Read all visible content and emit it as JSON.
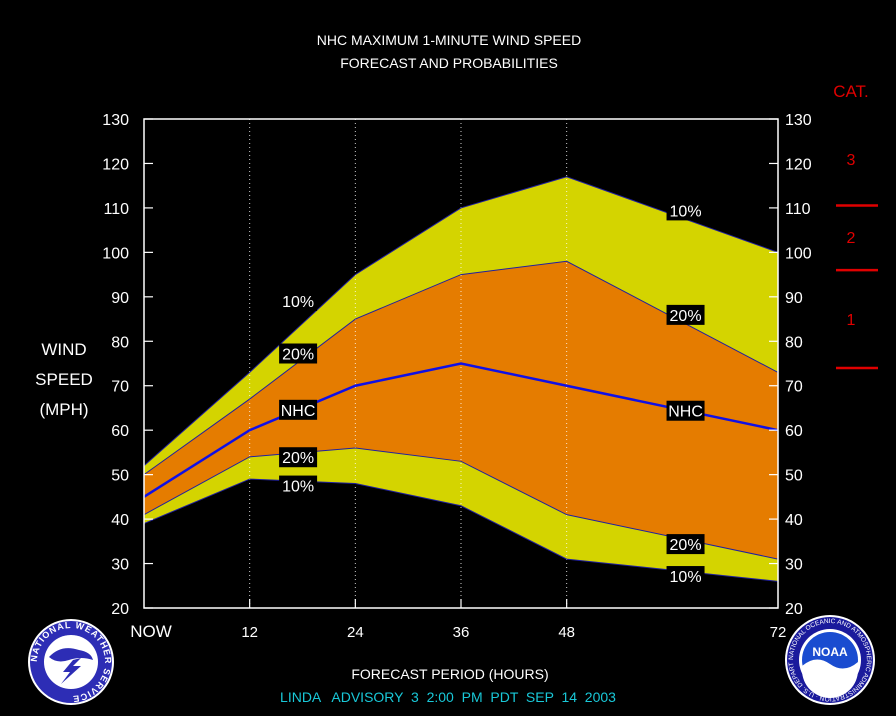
{
  "chart_data": {
    "type": "area",
    "title": "NHC MAXIMUM 1-MINUTE WIND SPEED",
    "subtitle": "FORECAST AND PROBABILITIES",
    "ylabel_lines": [
      "WIND",
      "SPEED",
      "(MPH)"
    ],
    "xlabel": "FORECAST PERIOD (HOURS)",
    "footer": "LINDA   ADVISORY  3  2:00  PM  PDT  SEP  14  2003",
    "x": [
      0,
      12,
      24,
      36,
      48,
      72
    ],
    "x_tick_labels": [
      "NOW",
      "12",
      "24",
      "36",
      "48",
      "72"
    ],
    "ylim": [
      20,
      130
    ],
    "y_ticks": [
      20,
      30,
      40,
      50,
      60,
      70,
      80,
      90,
      100,
      110,
      120,
      130
    ],
    "series": [
      {
        "name": "10%",
        "role": "upper_outer",
        "values": [
          52,
          73,
          95,
          110,
          117,
          100
        ]
      },
      {
        "name": "20%",
        "role": "upper_inner",
        "values": [
          50,
          67,
          85,
          95,
          98,
          73
        ]
      },
      {
        "name": "NHC",
        "role": "forecast",
        "values": [
          45,
          60,
          70,
          75,
          70,
          60
        ]
      },
      {
        "name": "20%",
        "role": "lower_inner",
        "values": [
          41,
          54,
          56,
          53,
          41,
          31
        ]
      },
      {
        "name": "10%",
        "role": "lower_outer",
        "values": [
          39,
          49,
          48,
          43,
          31,
          26
        ]
      }
    ],
    "category_scale": {
      "title": "CAT.",
      "labels": [
        "3",
        "2",
        "1"
      ],
      "boundaries_mph": [
        111,
        96,
        74
      ]
    },
    "colors": {
      "outer_band": "#d4d400",
      "inner_band": "#e57c00",
      "forecast_line": "#1010e6",
      "category": "#e00000",
      "footer": "#19c8d8"
    },
    "grid": "vertical dotted at 12h intervals",
    "logos": {
      "left": "NWS-logo",
      "right": "NOAA-logo"
    }
  },
  "left_logo_text": "NATIONAL WEATHER SERVICE",
  "right_logo_text": "NATIONAL OCEANIC AND ATMOSPHERIC ADMINISTRATION · U.S. DEPARTMENT OF COMMERCE",
  "noaa_text": "NOAA"
}
